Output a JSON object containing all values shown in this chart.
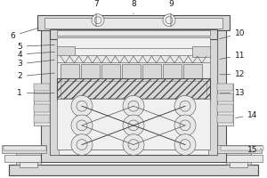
{
  "bg_color": "#ffffff",
  "lc": "#505050",
  "lc2": "#707070",
  "gray1": "#c8c8c8",
  "gray2": "#d8d8d8",
  "gray3": "#e8e8e8",
  "gray4": "#f0f0f0",
  "gray5": "#b0b0b0"
}
